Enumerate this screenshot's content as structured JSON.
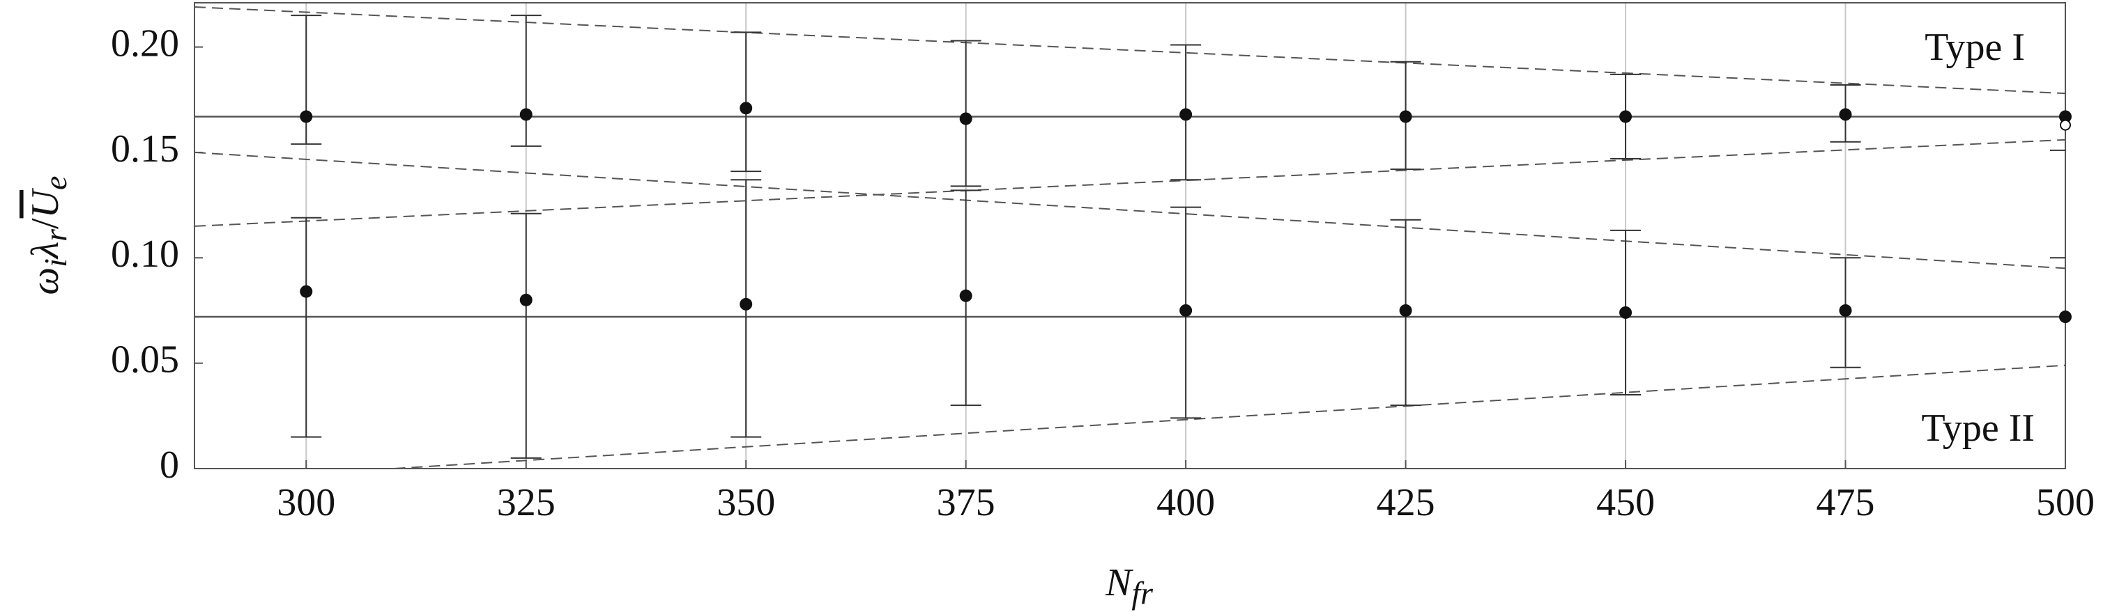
{
  "chart_data": {
    "type": "errorbar",
    "xlabel": {
      "base": "N",
      "subscript": "fr"
    },
    "ylabel": {
      "parts": [
        "ω",
        "i",
        "λ",
        "r",
        "/",
        "U",
        "e"
      ]
    },
    "x": [
      300,
      325,
      350,
      375,
      400,
      425,
      450,
      475,
      500
    ],
    "xlim": [
      287.3,
      500
    ],
    "ylim": [
      0,
      0.221
    ],
    "xticks": [
      300,
      325,
      350,
      375,
      400,
      425,
      450,
      475,
      500
    ],
    "yticks": [
      0,
      0.05,
      {
        "value": 0.1,
        "label": "0.10"
      },
      0.15,
      {
        "value": 0.2,
        "label": "0.20"
      }
    ],
    "grid": true,
    "color": "#111111",
    "series": [
      {
        "name": "Type I",
        "color": "#111111",
        "values": [
          0.167,
          0.168,
          0.171,
          0.166,
          0.168,
          0.167,
          0.167,
          0.168,
          0.167
        ],
        "upper": [
          0.215,
          0.215,
          0.207,
          0.203,
          0.201,
          0.193,
          0.187,
          0.182,
          null
        ],
        "lower": [
          0.154,
          0.153,
          0.141,
          0.134,
          0.137,
          0.142,
          0.147,
          0.155,
          0.151
        ]
      },
      {
        "name": "Type II",
        "color": "#111111",
        "values": [
          0.084,
          0.08,
          0.078,
          0.082,
          0.075,
          0.075,
          0.074,
          0.075,
          0.072
        ],
        "upper": [
          0.119,
          0.121,
          0.137,
          0.132,
          0.124,
          0.118,
          0.113,
          0.1,
          0.1
        ],
        "lower": [
          0.015,
          0.005,
          0.015,
          0.03,
          0.024,
          0.03,
          0.035,
          0.048,
          null
        ]
      }
    ],
    "open_points": {
      "x": [
        500
      ],
      "values": [
        0.163
      ]
    },
    "hlines": [
      0.167,
      0.072
    ],
    "dashed_lines": [
      {
        "x": [
          287.3,
          500
        ],
        "y": [
          0.219,
          0.178
        ]
      },
      {
        "x": [
          287.3,
          500
        ],
        "y": [
          0.15,
          0.095
        ]
      },
      {
        "x": [
          287.3,
          500
        ],
        "y": [
          0.115,
          0.156
        ]
      },
      {
        "x": [
          310,
          500
        ],
        "y": [
          0,
          0.049
        ]
      }
    ]
  }
}
